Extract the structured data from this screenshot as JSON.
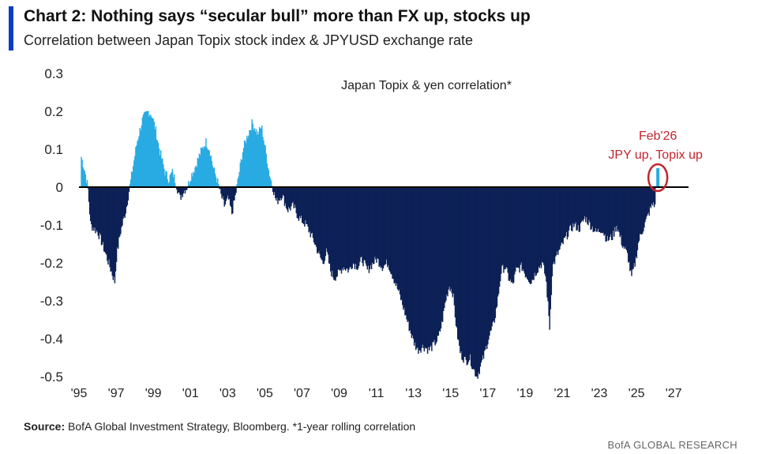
{
  "header": {
    "title": "Chart 2: Nothing says “secular bull” more than FX up, stocks up",
    "subtitle": "Correlation between Japan Topix stock index & JPYUSD exchange rate"
  },
  "footer": {
    "source_label": "Source:",
    "source_text": " BofA Global Investment Strategy, Bloomberg. *1-year rolling correlation",
    "brand": "BofA GLOBAL RESEARCH"
  },
  "colors": {
    "positive": "#29aae2",
    "negative": "#0c2157",
    "accent": "#0a3ec2",
    "annotation": "#c0262d"
  },
  "chart_data": {
    "type": "area",
    "title": "Japan Topix & yen correlation*",
    "xlabel": "",
    "ylabel": "",
    "xlim": [
      1995,
      2027.8
    ],
    "ylim": [
      -0.5,
      0.3
    ],
    "y_ticks": [
      "0.3",
      "0.2",
      "0.1",
      "0",
      "-0.1",
      "-0.2",
      "-0.3",
      "-0.4",
      "-0.5"
    ],
    "x_ticks": [
      "'95",
      "'97",
      "'99",
      "'01",
      "'03",
      "'05",
      "'07",
      "'09",
      "'11",
      "'13",
      "'15",
      "'17",
      "'19",
      "'21",
      "'23",
      "'25",
      "'27"
    ],
    "grid": false,
    "series": [
      {
        "points": [
          [
            1995.1,
            0.08
          ],
          [
            1995.3,
            0.04
          ],
          [
            1995.45,
            0.0
          ],
          [
            1995.6,
            -0.1
          ],
          [
            1996.0,
            -0.12
          ],
          [
            1996.3,
            -0.16
          ],
          [
            1996.7,
            -0.22
          ],
          [
            1996.9,
            -0.25
          ],
          [
            1997.0,
            -0.18
          ],
          [
            1997.2,
            -0.12
          ],
          [
            1997.5,
            -0.06
          ],
          [
            1997.7,
            0.0
          ],
          [
            1997.9,
            0.06
          ],
          [
            1998.1,
            0.12
          ],
          [
            1998.4,
            0.18
          ],
          [
            1998.7,
            0.2
          ],
          [
            1998.9,
            0.19
          ],
          [
            1999.1,
            0.15
          ],
          [
            1999.3,
            0.1
          ],
          [
            1999.6,
            0.04
          ],
          [
            1999.8,
            0.02
          ],
          [
            2000.0,
            0.04
          ],
          [
            2000.2,
            0.01
          ],
          [
            2000.4,
            -0.03
          ],
          [
            2000.6,
            -0.01
          ],
          [
            2000.8,
            0.0
          ],
          [
            2001.0,
            0.03
          ],
          [
            2001.2,
            0.05
          ],
          [
            2001.5,
            0.09
          ],
          [
            2001.8,
            0.12
          ],
          [
            2002.0,
            0.1
          ],
          [
            2002.2,
            0.05
          ],
          [
            2002.4,
            0.02
          ],
          [
            2002.6,
            -0.02
          ],
          [
            2002.8,
            -0.05
          ],
          [
            2003.0,
            -0.03
          ],
          [
            2003.2,
            -0.07
          ],
          [
            2003.4,
            -0.02
          ],
          [
            2003.6,
            0.04
          ],
          [
            2003.8,
            0.1
          ],
          [
            2004.0,
            0.13
          ],
          [
            2004.3,
            0.17
          ],
          [
            2004.6,
            0.14
          ],
          [
            2004.8,
            0.16
          ],
          [
            2005.0,
            0.1
          ],
          [
            2005.2,
            0.04
          ],
          [
            2005.4,
            0.0
          ],
          [
            2005.6,
            -0.04
          ],
          [
            2005.9,
            -0.02
          ],
          [
            2006.2,
            -0.06
          ],
          [
            2006.5,
            -0.05
          ],
          [
            2006.8,
            -0.08
          ],
          [
            2007.2,
            -0.1
          ],
          [
            2007.6,
            -0.14
          ],
          [
            2007.9,
            -0.18
          ],
          [
            2008.1,
            -0.2
          ],
          [
            2008.3,
            -0.17
          ],
          [
            2008.5,
            -0.22
          ],
          [
            2008.7,
            -0.24
          ],
          [
            2008.9,
            -0.23
          ],
          [
            2009.2,
            -0.21
          ],
          [
            2009.5,
            -0.22
          ],
          [
            2009.7,
            -0.2
          ],
          [
            2010.0,
            -0.21
          ],
          [
            2010.2,
            -0.19
          ],
          [
            2010.5,
            -0.22
          ],
          [
            2010.8,
            -0.2
          ],
          [
            2011.0,
            -0.19
          ],
          [
            2011.3,
            -0.21
          ],
          [
            2011.6,
            -0.2
          ],
          [
            2011.9,
            -0.24
          ],
          [
            2012.2,
            -0.28
          ],
          [
            2012.5,
            -0.33
          ],
          [
            2012.8,
            -0.38
          ],
          [
            2013.0,
            -0.41
          ],
          [
            2013.2,
            -0.43
          ],
          [
            2013.5,
            -0.42
          ],
          [
            2013.8,
            -0.43
          ],
          [
            2014.0,
            -0.42
          ],
          [
            2014.3,
            -0.4
          ],
          [
            2014.5,
            -0.36
          ],
          [
            2014.7,
            -0.3
          ],
          [
            2014.9,
            -0.26
          ],
          [
            2015.1,
            -0.28
          ],
          [
            2015.3,
            -0.38
          ],
          [
            2015.5,
            -0.44
          ],
          [
            2015.8,
            -0.46
          ],
          [
            2016.0,
            -0.45
          ],
          [
            2016.2,
            -0.48
          ],
          [
            2016.4,
            -0.5
          ],
          [
            2016.6,
            -0.47
          ],
          [
            2016.8,
            -0.44
          ],
          [
            2017.0,
            -0.4
          ],
          [
            2017.3,
            -0.36
          ],
          [
            2017.5,
            -0.3
          ],
          [
            2017.7,
            -0.22
          ],
          [
            2017.9,
            -0.21
          ],
          [
            2018.1,
            -0.24
          ],
          [
            2018.3,
            -0.26
          ],
          [
            2018.5,
            -0.22
          ],
          [
            2018.8,
            -0.21
          ],
          [
            2019.0,
            -0.23
          ],
          [
            2019.3,
            -0.25
          ],
          [
            2019.6,
            -0.22
          ],
          [
            2019.9,
            -0.2
          ],
          [
            2020.1,
            -0.24
          ],
          [
            2020.3,
            -0.37
          ],
          [
            2020.45,
            -0.21
          ],
          [
            2020.7,
            -0.18
          ],
          [
            2021.0,
            -0.15
          ],
          [
            2021.3,
            -0.12
          ],
          [
            2021.6,
            -0.1
          ],
          [
            2021.9,
            -0.11
          ],
          [
            2022.2,
            -0.08
          ],
          [
            2022.5,
            -0.1
          ],
          [
            2022.8,
            -0.12
          ],
          [
            2023.1,
            -0.11
          ],
          [
            2023.4,
            -0.14
          ],
          [
            2023.7,
            -0.13
          ],
          [
            2023.9,
            -0.1
          ],
          [
            2024.2,
            -0.15
          ],
          [
            2024.5,
            -0.18
          ],
          [
            2024.7,
            -0.24
          ],
          [
            2024.9,
            -0.2
          ],
          [
            2025.1,
            -0.14
          ],
          [
            2025.4,
            -0.1
          ],
          [
            2025.7,
            -0.06
          ],
          [
            2025.9,
            -0.04
          ],
          [
            2026.05,
            -0.07
          ],
          [
            2026.15,
            0.05
          ]
        ]
      }
    ],
    "annotation": {
      "line1": "Feb'26",
      "line2": "JPY up, Topix up",
      "x": 2026.15,
      "y": 0.025
    }
  }
}
